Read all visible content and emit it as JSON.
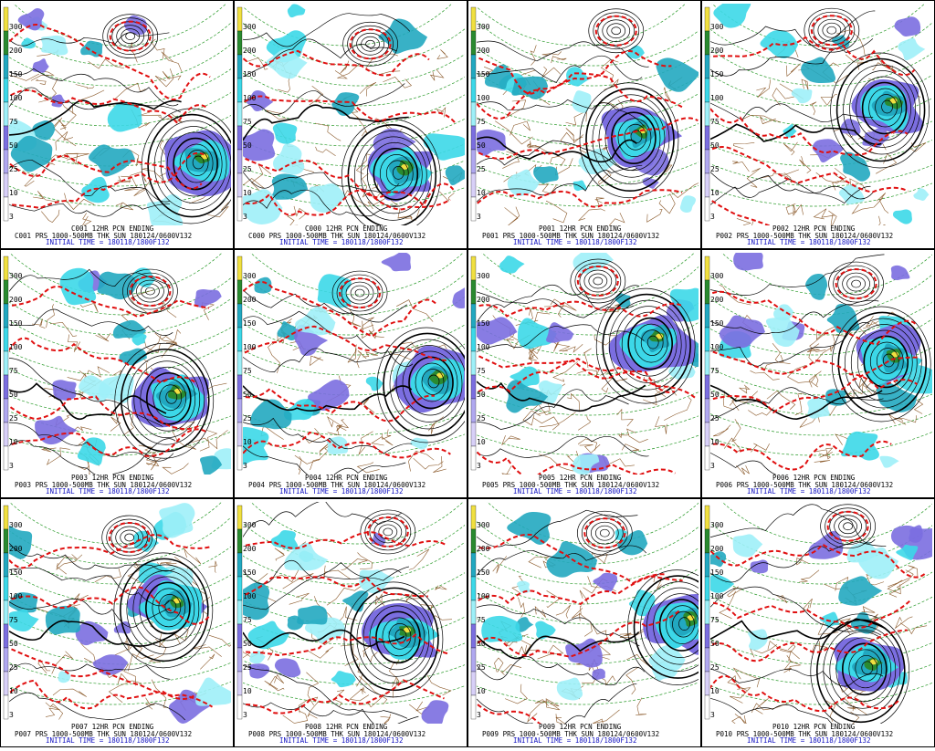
{
  "scale_labels": [
    300,
    200,
    150,
    100,
    75,
    50,
    25,
    10,
    3
  ],
  "panels": [
    {
      "title": "C001 12HR PCN ENDING",
      "line": "C001 PRS 1000-500MB THK SUN 180124/0600V132",
      "init": "INITIAL TIME = 180118/1800F132"
    },
    {
      "title": "C000 12HR PCN ENDING",
      "line": "C000 PRS 1000-500MB THK SUN 180124/0600V132",
      "init": "INITIAL TIME = 180118/1800F132"
    },
    {
      "title": "P001 12HR PCN ENDING",
      "line": "P001 PRS 1000-500MB THK SUN 180124/0600V132",
      "init": "INITIAL TIME = 180118/1800F132"
    },
    {
      "title": "P002 12HR PCN ENDING",
      "line": "P002 PRS 1000-500MB THK SUN 180124/0600V132",
      "init": "INITIAL TIME = 180118/1800F132"
    },
    {
      "title": "P003 12HR PCN ENDING",
      "line": "P003 PRS 1000-500MB THK SUN 180124/0600V132",
      "init": "INITIAL TIME = 180118/1800F132"
    },
    {
      "title": "P004 12HR PCN ENDING",
      "line": "P004 PRS 1000-500MB THK SUN 180124/0600V132",
      "init": "INITIAL TIME = 180118/1800F132"
    },
    {
      "title": "P005 12HR PCN ENDING",
      "line": "P005 PRS 1000-500MB THK SUN 180124/0600V132",
      "init": "INITIAL TIME = 180118/1800F132"
    },
    {
      "title": "P006 12HR PCN ENDING",
      "line": "P006 PRS 1000-500MB THK SUN 180124/0600V132",
      "init": "INITIAL TIME = 180118/1800F132"
    },
    {
      "title": "P007 12HR PCN ENDING",
      "line": "P007 PRS 1000-500MB THK SUN 180124/0600V132",
      "init": "INITIAL TIME = 180118/1800F132"
    },
    {
      "title": "P008 12HR PCN ENDING",
      "line": "P008 PRS 1000-500MB THK SUN 180124/0600V132",
      "init": "INITIAL TIME = 180118/1800F132"
    },
    {
      "title": "P009 12HR PCN ENDING",
      "line": "P009 PRS 1000-500MB THK SUN 180124/0600V132",
      "init": "INITIAL TIME = 180118/1800F132"
    },
    {
      "title": "P010 12HR PCN ENDING",
      "line": "P010 PRS 1000-500MB THK SUN 180124/0600V132",
      "init": "INITIAL TIME = 180118/1800F132"
    }
  ]
}
